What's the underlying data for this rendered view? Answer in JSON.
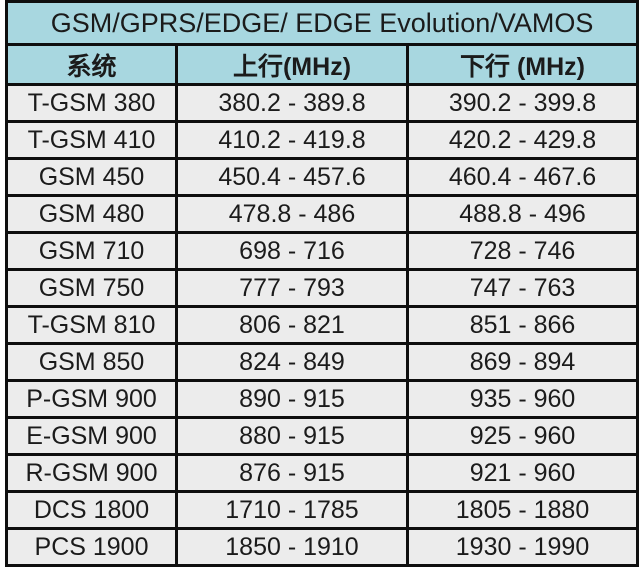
{
  "table": {
    "title": "GSM/GPRS/EDGE/ EDGE Evolution/VAMOS",
    "columns": [
      "系统",
      "上行(MHz)",
      "下行 (MHz)"
    ],
    "rows": [
      [
        "T-GSM 380",
        "380.2 - 389.8",
        "390.2 - 399.8"
      ],
      [
        "T-GSM 410",
        "410.2 - 419.8",
        "420.2 - 429.8"
      ],
      [
        "GSM 450",
        "450.4 - 457.6",
        "460.4 - 467.6"
      ],
      [
        "GSM 480",
        "478.8 - 486",
        "488.8 - 496"
      ],
      [
        "GSM 710",
        "698 - 716",
        "728 - 746"
      ],
      [
        "GSM 750",
        "777 - 793",
        "747 - 763"
      ],
      [
        "T-GSM 810",
        "806 - 821",
        "851 - 866"
      ],
      [
        "GSM 850",
        "824 - 849",
        "869 - 894"
      ],
      [
        "P-GSM 900",
        "890 - 915",
        "935 - 960"
      ],
      [
        "E-GSM 900",
        "880 - 915",
        "925 - 960"
      ],
      [
        "R-GSM 900",
        "876 - 915",
        "921 - 960"
      ],
      [
        "DCS 1800",
        "1710 - 1785",
        "1805 - 1880"
      ],
      [
        "PCS 1900",
        "1850 - 1910",
        "1930 - 1990"
      ]
    ],
    "colors": {
      "header_bg": "#a8d7e0",
      "row_bg": "#ececec",
      "border": "#0e0e0e",
      "text": "#1b1b1b"
    }
  },
  "chart_data": {
    "type": "table",
    "title": "GSM/GPRS/EDGE/ EDGE Evolution/VAMOS",
    "columns": [
      "系统",
      "上行(MHz)",
      "下行 (MHz)"
    ],
    "rows": [
      [
        "T-GSM 380",
        "380.2 - 389.8",
        "390.2 - 399.8"
      ],
      [
        "T-GSM 410",
        "410.2 - 419.8",
        "420.2 - 429.8"
      ],
      [
        "GSM 450",
        "450.4 - 457.6",
        "460.4 - 467.6"
      ],
      [
        "GSM 480",
        "478.8 - 486",
        "488.8 - 496"
      ],
      [
        "GSM 710",
        "698 - 716",
        "728 - 746"
      ],
      [
        "GSM 750",
        "777 - 793",
        "747 - 763"
      ],
      [
        "T-GSM 810",
        "806 - 821",
        "851 - 866"
      ],
      [
        "GSM 850",
        "824 - 849",
        "869 - 894"
      ],
      [
        "P-GSM 900",
        "890 - 915",
        "935 - 960"
      ],
      [
        "E-GSM 900",
        "880 - 915",
        "925 - 960"
      ],
      [
        "R-GSM 900",
        "876 - 915",
        "921 - 960"
      ],
      [
        "DCS 1800",
        "1710 - 1785",
        "1805 - 1880"
      ],
      [
        "PCS 1900",
        "1850 - 1910",
        "1930 - 1990"
      ]
    ]
  }
}
